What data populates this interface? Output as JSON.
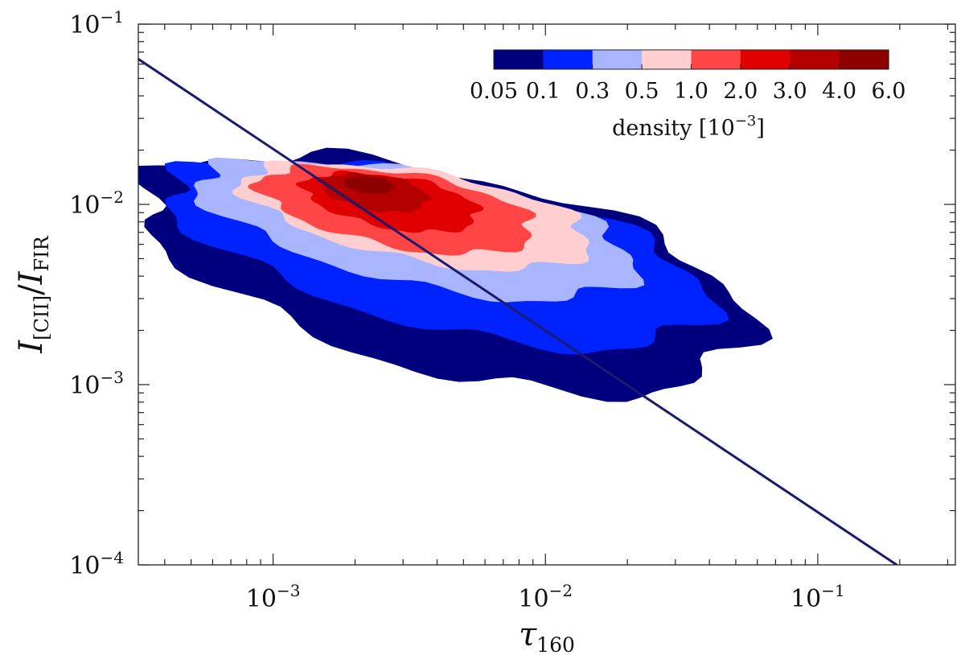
{
  "chart_data": {
    "type": "contour",
    "title": "",
    "xlabel": {
      "symbol": "τ",
      "sub": "160"
    },
    "ylabel": {
      "num": "I",
      "num_sub": "[CII]",
      "den": "I",
      "den_sub": "FIR"
    },
    "x_scale": "log",
    "y_scale": "log",
    "xlim": [
      0.00032,
      0.32
    ],
    "ylim": [
      0.0001,
      0.1
    ],
    "x_ticks": [
      {
        "value": 0.001,
        "base": "10",
        "exp": "−3"
      },
      {
        "value": 0.01,
        "base": "10",
        "exp": "−2"
      },
      {
        "value": 0.1,
        "base": "10",
        "exp": "−1"
      }
    ],
    "y_ticks": [
      {
        "value": 0.1,
        "base": "10",
        "exp": "−1"
      },
      {
        "value": 0.01,
        "base": "10",
        "exp": "−2"
      },
      {
        "value": 0.001,
        "base": "10",
        "exp": "−3"
      },
      {
        "value": 0.0001,
        "base": "10",
        "exp": "−4"
      }
    ],
    "colorbar": {
      "label": "density [10",
      "label_exp": "−3",
      "label_end": "]",
      "location": "top-right",
      "levels": [
        "0.05",
        "0.1",
        "0.3",
        "0.5",
        "1.0",
        "2.0",
        "3.0",
        "4.0",
        "6.0"
      ],
      "colors": [
        "#00007f",
        "#0022ff",
        "#aab5ff",
        "#ffcfcf",
        "#ff4545",
        "#e00000",
        "#b50000",
        "#8c0000"
      ]
    },
    "reference_line": {
      "color": "#1a1a6e",
      "points": [
        [
          0.00032,
          0.064
        ],
        [
          0.195,
          0.0001
        ]
      ]
    },
    "density_center": {
      "tau": 0.0022,
      "ratio": 0.0125
    },
    "contour_regions": [
      {
        "level_index": 0,
        "color": "#00007f",
        "center": [
          -2.38,
          -2.35
        ],
        "half_width": [
          1.18,
          0.53
        ],
        "angle": -22
      },
      {
        "level_index": 1,
        "color": "#0022ff",
        "center": [
          -2.4,
          -2.25
        ],
        "half_width": [
          1.05,
          0.4
        ],
        "angle": -20
      },
      {
        "level_index": 2,
        "color": "#aab5ff",
        "center": [
          -2.48,
          -2.12
        ],
        "half_width": [
          0.84,
          0.3
        ],
        "angle": -18
      },
      {
        "level_index": 3,
        "color": "#ffcfcf",
        "center": [
          -2.48,
          -2.05
        ],
        "half_width": [
          0.66,
          0.24
        ],
        "angle": -16
      },
      {
        "level_index": 4,
        "color": "#ff4545",
        "center": [
          -2.55,
          -2.02
        ],
        "half_width": [
          0.52,
          0.2
        ],
        "angle": -16
      },
      {
        "level_index": 5,
        "color": "#e00000",
        "center": [
          -2.57,
          -1.98
        ],
        "half_width": [
          0.33,
          0.14
        ],
        "angle": -16
      },
      {
        "level_index": 6,
        "color": "#b50000",
        "center": [
          -2.63,
          -1.93
        ],
        "half_width": [
          0.2,
          0.095
        ],
        "angle": -15
      },
      {
        "level_index": 7,
        "color": "#8c0000",
        "center": [
          -2.65,
          -1.89
        ],
        "half_width": [
          0.09,
          0.045
        ],
        "angle": -10
      }
    ]
  }
}
